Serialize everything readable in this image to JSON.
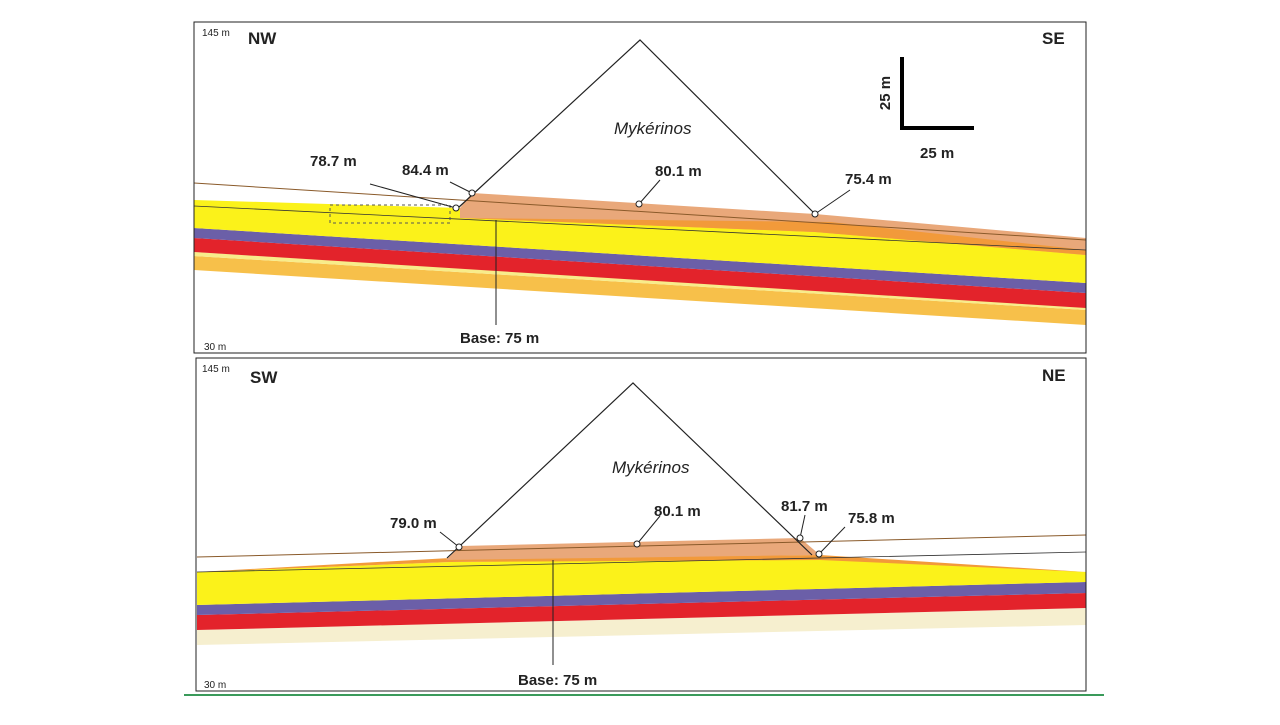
{
  "panels": [
    {
      "top_label": "145 m",
      "bottom_label": "30 m",
      "left_direction": "NW",
      "right_direction": "SE",
      "name": "Mykérinos",
      "points": [
        "78.7 m",
        "84.4 m",
        "80.1 m",
        "75.4 m"
      ],
      "base": "Base: 75 m"
    },
    {
      "top_label": "145 m",
      "bottom_label": "30 m",
      "left_direction": "SW",
      "right_direction": "NE",
      "name": "Mykérinos",
      "points": [
        "79.0 m",
        "80.1 m",
        "81.7 m",
        "75.8 m"
      ],
      "base": "Base: 75 m"
    }
  ],
  "scale": {
    "vertical": "25 m",
    "horizontal": "25 m"
  }
}
